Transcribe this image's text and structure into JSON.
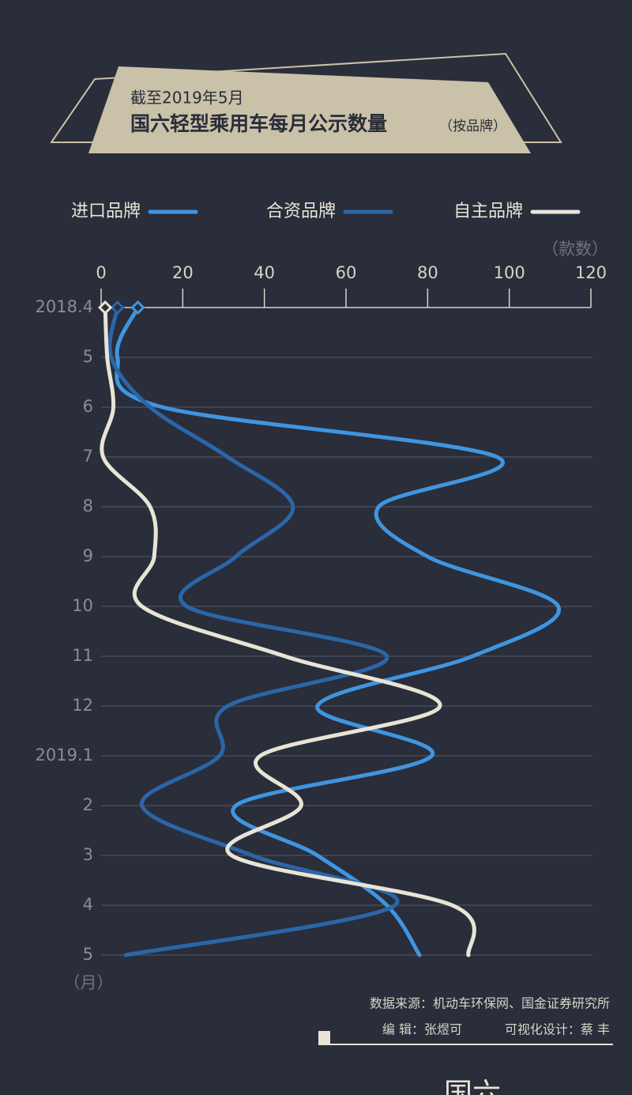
{
  "chart_data": {
    "type": "line",
    "subtitle": "截至2019年5月",
    "title": "国六轻型乘用车每月公示数量",
    "title_note": "（按品牌）",
    "xlabel": "（款数）",
    "ylabel": "（月）",
    "categories": [
      "2018.4",
      "5",
      "6",
      "7",
      "8",
      "9",
      "10",
      "11",
      "12",
      "2019.1",
      "2",
      "3",
      "4",
      "5"
    ],
    "xlim": [
      0,
      120
    ],
    "xticks": [
      0,
      20,
      40,
      60,
      80,
      100,
      120
    ],
    "grid": true,
    "series": [
      {
        "name": "进口品牌",
        "color": "#3f95e0",
        "values": [
          9,
          4,
          15,
          97,
          68,
          80,
          112,
          91,
          53,
          81,
          33,
          53,
          70,
          78
        ]
      },
      {
        "name": "合资品牌",
        "color": "#2a66a8",
        "values": [
          4,
          2.5,
          12,
          31,
          47,
          33,
          21,
          70,
          31,
          29,
          10,
          37,
          72,
          6
        ]
      },
      {
        "name": "自主品牌",
        "color": "#e8e4d6",
        "values": [
          1,
          1.5,
          3,
          0.5,
          12,
          13,
          10,
          45,
          83,
          39,
          49,
          32,
          86,
          90
        ]
      }
    ],
    "source": "数据来源：机动车环保网、国金证券研究所",
    "credits": [
      "编 辑：张煜可",
      "可视化设计：蔡 丰"
    ],
    "footer_cut": "国六"
  }
}
